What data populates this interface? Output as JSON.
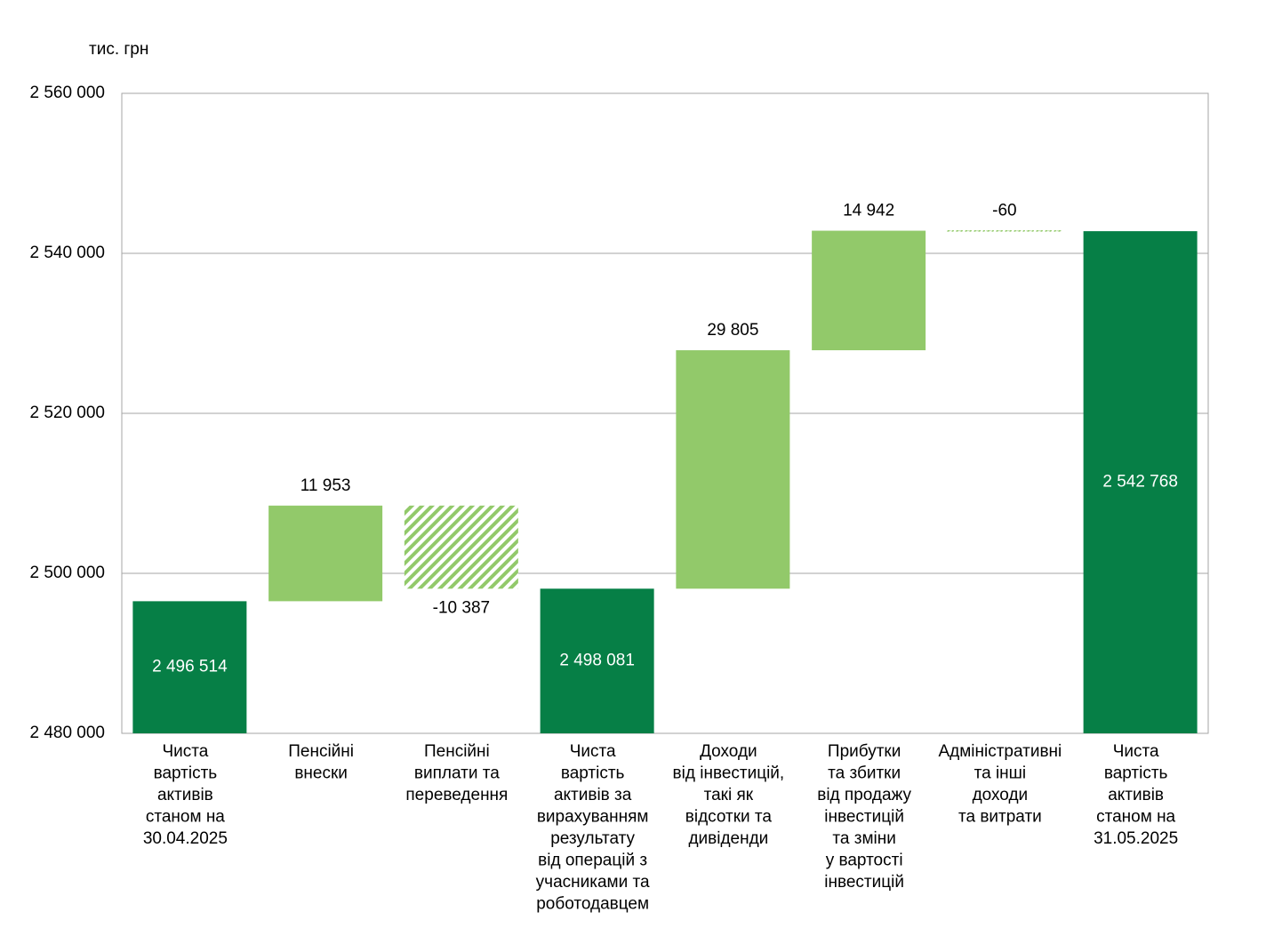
{
  "chart_data": {
    "type": "waterfall",
    "y_label": "тис. грн",
    "categories": [
      [
        "Чиста",
        "вартість",
        "активів",
        "станом на",
        "30.04.2025"
      ],
      [
        "Пенсійні",
        "внески"
      ],
      [
        "Пенсійні",
        "виплати  та",
        "переведення"
      ],
      [
        "Чиста",
        "вартість",
        "активів за",
        "вирахуванням",
        "результату",
        "від операцій з",
        "учасниками  та",
        "роботодавцем"
      ],
      [
        "Доходи",
        "від інвестицій,",
        "такі як",
        "відсотки та",
        "дивіденди"
      ],
      [
        "Прибутки",
        "та збитки",
        "від продажу",
        "інвестицій",
        "та зміни",
        "у вартості",
        "інвестицій"
      ],
      [
        "Адміністративні",
        "та інші",
        "доходи",
        "та витрати"
      ],
      [
        "Чиста",
        "вартість",
        "активів",
        "станом на",
        "31.05.2025"
      ]
    ],
    "kinds": [
      "total",
      "delta",
      "delta",
      "total",
      "delta",
      "delta",
      "delta",
      "total"
    ],
    "values": [
      2496514,
      11953,
      -10387,
      2498081,
      29805,
      14942,
      -60,
      2542768
    ],
    "value_labels": [
      "2 496 514",
      "11 953",
      "-10 387",
      "2 498 081",
      "29 805",
      "14 942",
      "-60",
      "2 542 768"
    ],
    "colors": {
      "total": "#067f46",
      "increase": "#92c96a",
      "decrease": "#92c96a"
    },
    "ylim": [
      2480000,
      2560000
    ],
    "yticks": [
      {
        "value": 2480000,
        "label": "2 480 000"
      },
      {
        "value": 2500000,
        "label": "2 500 000"
      },
      {
        "value": 2520000,
        "label": "2 520 000"
      },
      {
        "value": 2540000,
        "label": "2 540 000"
      },
      {
        "value": 2560000,
        "label": "2 560 000"
      }
    ],
    "grid": true
  }
}
